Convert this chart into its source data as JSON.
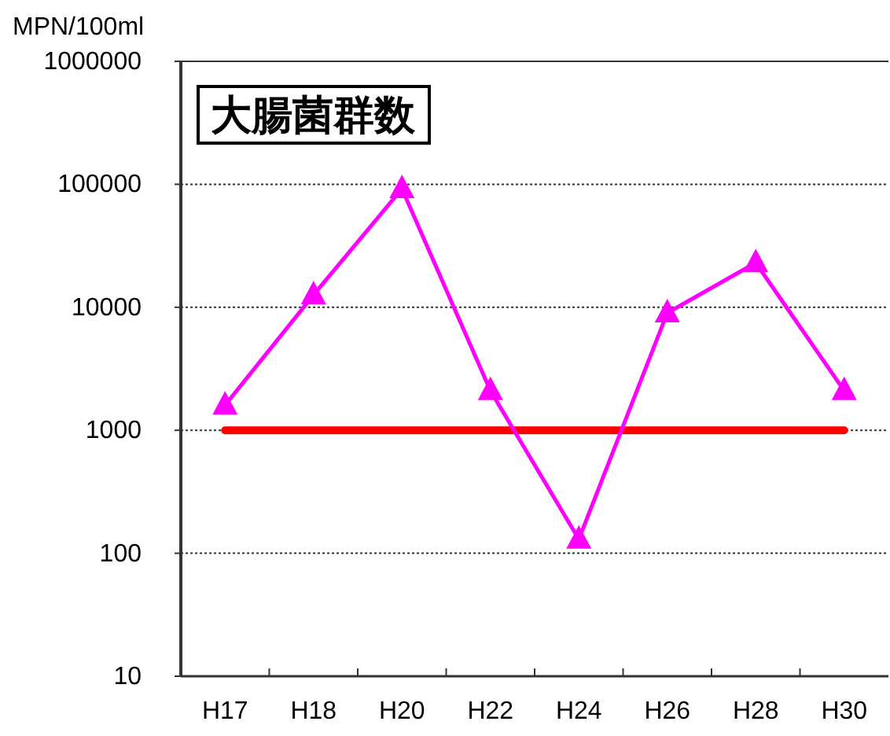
{
  "chart_data": {
    "type": "line",
    "title": "大腸菌群数",
    "ylabel": "MPN/100ml",
    "categories": [
      "H17",
      "H18",
      "H20",
      "H22",
      "H24",
      "H26",
      "H28",
      "H30"
    ],
    "series": [
      {
        "color": "#ff00ff",
        "values": [
          1600,
          12600,
          92000,
          2100,
          130,
          9000,
          23000,
          2100
        ]
      }
    ],
    "log": true,
    "ylim": [
      10,
      1000000
    ],
    "yticks": [
      10,
      100,
      1000,
      10000,
      100000,
      1000000
    ],
    "grid": "y",
    "marker": "triangle",
    "line_style": "solid",
    "ref_lines": [
      {
        "axis": "y",
        "value": 1000,
        "color": "#ff0000"
      }
    ]
  }
}
